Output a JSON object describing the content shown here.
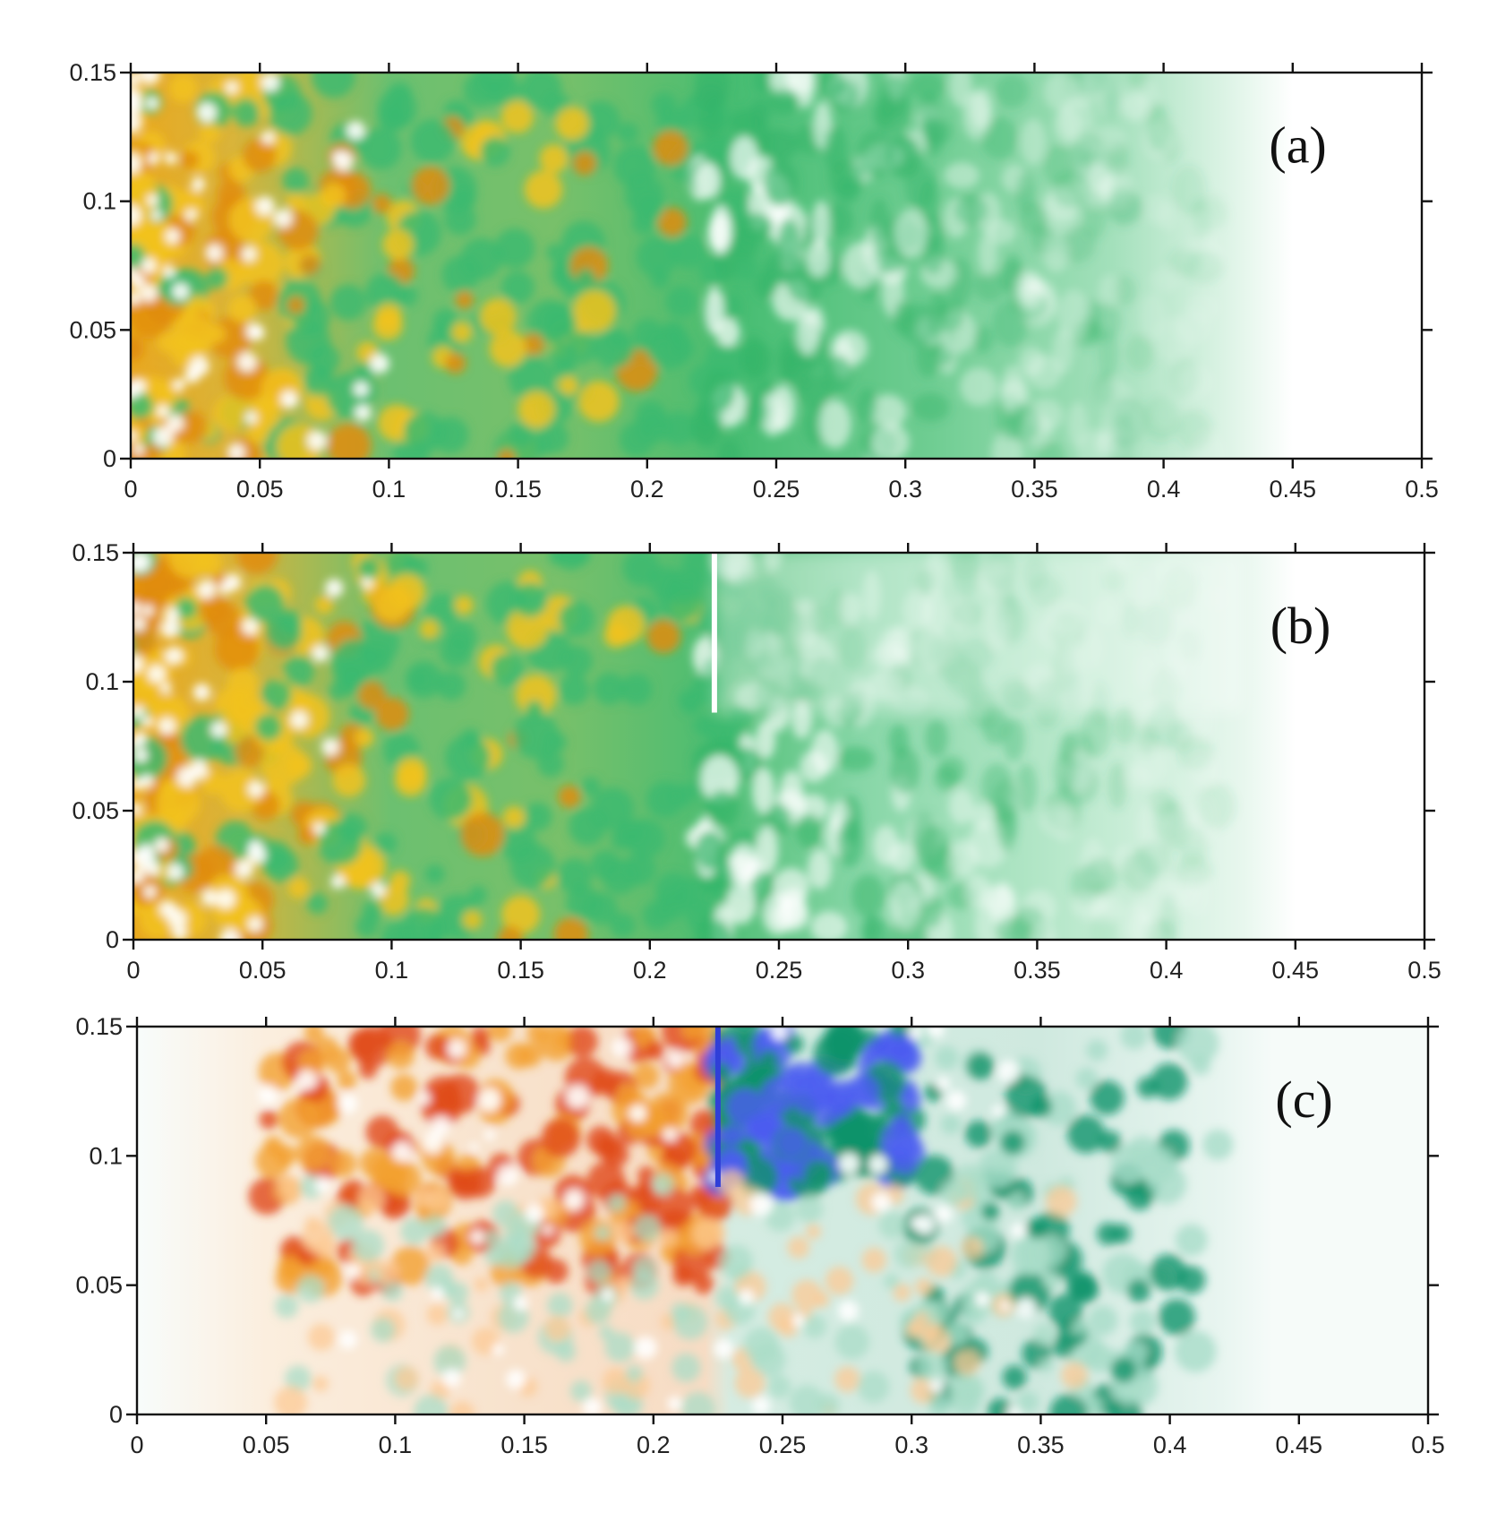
{
  "chart_data": [
    {
      "type": "heatmap",
      "panel_label": "(a)",
      "x_ticks": [
        0,
        0.05,
        0.1,
        0.15,
        0.2,
        0.25,
        0.3,
        0.35,
        0.4,
        0.45,
        0.5
      ],
      "y_ticks": [
        0,
        0.05,
        0.1,
        0.15
      ],
      "xlim": [
        0,
        0.5
      ],
      "ylim": [
        0,
        0.15
      ],
      "colormap": [
        "#ffffff",
        "#a8e2c0",
        "#3cba70",
        "#9fb658",
        "#f0c020",
        "#e08c10"
      ],
      "regions": [
        {
          "x": [
            0,
            0.1
          ],
          "level": "high",
          "colors": [
            "#3cba70",
            "#f0c020",
            "#ffffff"
          ]
        },
        {
          "x": [
            0.1,
            0.24
          ],
          "level": "mid",
          "colors": [
            "#3cba70",
            "#f0c020"
          ]
        },
        {
          "x": [
            0.24,
            0.43
          ],
          "level": "low",
          "colors": [
            "#3cba70",
            "#ffffff"
          ]
        },
        {
          "x": [
            0.43,
            0.5
          ],
          "level": "zero",
          "colors": [
            "#ffffff"
          ]
        }
      ]
    },
    {
      "type": "heatmap",
      "panel_label": "(b)",
      "x_ticks": [
        0,
        0.05,
        0.1,
        0.15,
        0.2,
        0.25,
        0.3,
        0.35,
        0.4,
        0.45,
        0.5
      ],
      "y_ticks": [
        0,
        0.05,
        0.1,
        0.15
      ],
      "xlim": [
        0,
        0.5
      ],
      "ylim": [
        0,
        0.15
      ],
      "colormap": [
        "#ffffff",
        "#a8e2c0",
        "#3cba70",
        "#9fb658",
        "#f0c020",
        "#e08c10"
      ],
      "crack": {
        "x": 0.225,
        "y_from": 0.088,
        "y_to": 0.15
      },
      "regions": [
        {
          "x": [
            0,
            0.1
          ],
          "level": "high",
          "colors": [
            "#3cba70",
            "#f0c020",
            "#ffffff"
          ]
        },
        {
          "x": [
            0.1,
            0.225
          ],
          "level": "mid",
          "colors": [
            "#3cba70",
            "#f0c020"
          ]
        },
        {
          "x": [
            0.225,
            0.43
          ],
          "level": "low",
          "colors": [
            "#3cba70",
            "#ffffff"
          ]
        },
        {
          "x": [
            0.43,
            0.5
          ],
          "level": "zero",
          "colors": [
            "#ffffff"
          ]
        }
      ]
    },
    {
      "type": "heatmap",
      "panel_label": "(c)",
      "x_ticks": [
        0,
        0.05,
        0.1,
        0.15,
        0.2,
        0.25,
        0.3,
        0.35,
        0.4,
        0.45,
        0.5
      ],
      "y_ticks": [
        0,
        0.05,
        0.1,
        0.15
      ],
      "xlim": [
        0,
        0.5
      ],
      "ylim": [
        0,
        0.15
      ],
      "colormap_diverging": [
        "#4b5cf0",
        "#11936a",
        "#a8dcc8",
        "#f5fbf9",
        "#fcd2a8",
        "#f2a030",
        "#e04818"
      ],
      "crack": {
        "x": 0.225,
        "y_from": 0.088,
        "y_to": 0.15
      },
      "regions": [
        {
          "x": [
            0.05,
            0.225
          ],
          "y": [
            0.05,
            0.15
          ],
          "sign": "positive",
          "colors": [
            "#f2a030",
            "#e04818"
          ]
        },
        {
          "x": [
            0.225,
            0.3
          ],
          "y": [
            0.09,
            0.15
          ],
          "sign": "negative",
          "colors": [
            "#4b5cf0",
            "#11936a"
          ]
        },
        {
          "x": [
            0.3,
            0.42
          ],
          "y": [
            0,
            0.15
          ],
          "sign": "negative",
          "colors": [
            "#11936a",
            "#a8dcc8"
          ]
        }
      ]
    }
  ]
}
